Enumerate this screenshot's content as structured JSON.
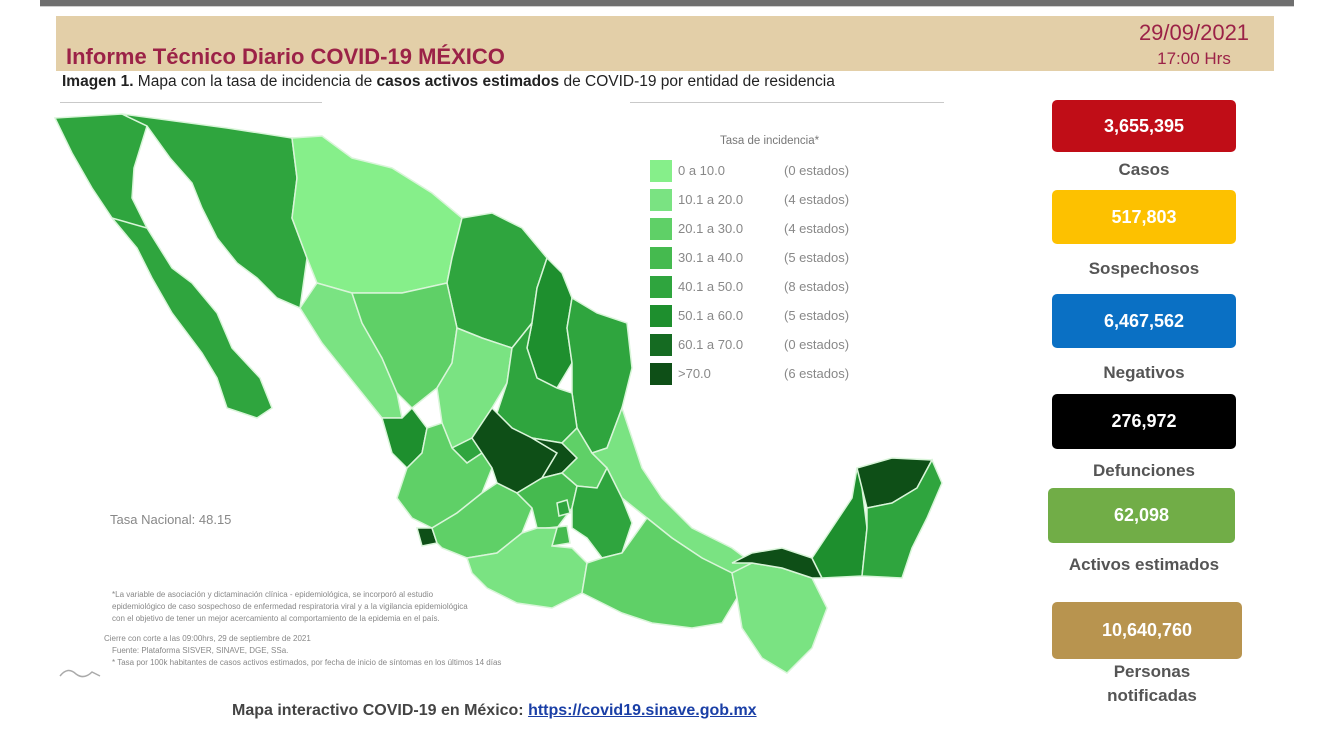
{
  "header": {
    "title": "Informe Técnico Diario COVID-19 MÉXICO",
    "date": "29/09/2021",
    "time": "17:00 Hrs"
  },
  "caption": {
    "prefix": "Imagen 1.",
    "part1": " Mapa con la tasa de incidencia de ",
    "bold": "casos activos estimados",
    "part2": " de COVID-19 por entidad de residencia"
  },
  "legend": {
    "title": "Tasa de incidencia*",
    "items": [
      {
        "range": "0   a  10.0",
        "count": "(0 estados)",
        "color": "#86ef8a"
      },
      {
        "range": "10.1 a  20.0",
        "count": "(4 estados)",
        "color": "#7ae382"
      },
      {
        "range": "20.1 a  30.0",
        "count": "(4 estados)",
        "color": "#5fd067"
      },
      {
        "range": "30.1 a  40.0",
        "count": "(5 estados)",
        "color": "#45ba4f"
      },
      {
        "range": "40.1 a  50.0",
        "count": "(8 estados)",
        "color": "#2fa53e"
      },
      {
        "range": "50.1 a  60.0",
        "count": "(5 estados)",
        "color": "#1e8f2e"
      },
      {
        "range": "60.1 a  70.0",
        "count": "(0 estados)",
        "color": "#156b22"
      },
      {
        "range": ">70.0",
        "count": "(6 estados)",
        "color": "#0e4f17"
      }
    ]
  },
  "tasa_nacional": "Tasa Nacional: 48.15",
  "notes": {
    "n1": "*La variable de asociación y dictaminación clínica - epidemiológica, se incorporó al estudio",
    "n2": "epidemiológico de caso sospechoso de enfermedad respiratoria viral y a la vigilancia epidemiológica",
    "n3": "con el objetivo de tener un mejor acercamiento al comportamiento de la epidemia en el país.",
    "n4": "Cierre con corte a las 09:00hrs, 29 de septiembre de 2021",
    "n5": "Fuente: Plataforma SISVER, SINAVE, DGE, SSa.",
    "n6": "* Tasa por 100k habitantes de casos activos estimados, por fecha de inicio de síntomas en los últimos 14 días"
  },
  "footer": {
    "label": "Mapa interactivo COVID-19 en México: ",
    "link": "https://covid19.sinave.gob.mx"
  },
  "stats": [
    {
      "value": "3,655,395",
      "label": "Casos",
      "color": "#c00d17"
    },
    {
      "value": "517,803",
      "label": "Sospechosos",
      "color": "#fdc100"
    },
    {
      "value": "6,467,562",
      "label": "Negativos",
      "color": "#0a70c4"
    },
    {
      "value": "276,972",
      "label": "Defunciones",
      "color": "#000000"
    },
    {
      "value": "62,098",
      "label": "Activos estimados",
      "color": "#71ad47"
    },
    {
      "value": "10,640,760",
      "label": "Personas notificadas",
      "color": "#b8944f"
    }
  ]
}
